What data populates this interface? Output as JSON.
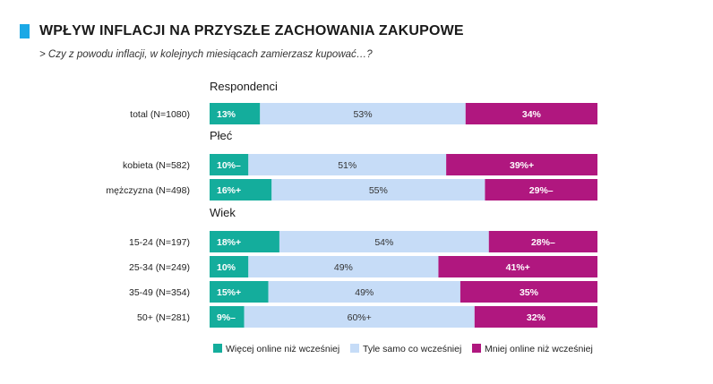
{
  "header": {
    "title": "WPŁYW INFLACJI NA PRZYSZŁE ZACHOWANIA ZAKUPOWE",
    "subtitle": "> Czy z powodu inflacji, w kolejnych miesiącach zamierzasz kupować…?"
  },
  "chart_data": {
    "type": "bar",
    "orientation": "horizontal",
    "stacked": true,
    "normalized": true,
    "colors": {
      "more_online": "#14ad9c",
      "same": "#c6dcf7",
      "less_online": "#b0177f"
    },
    "groups": [
      {
        "label": "Respondenci",
        "rows": [
          {
            "label": "total (N=1080)",
            "values": [
              13,
              53,
              34
            ],
            "labels": [
              "13%",
              "53%",
              "34%"
            ]
          }
        ]
      },
      {
        "label": "Płeć",
        "rows": [
          {
            "label": "kobieta (N=582)",
            "values": [
              10,
              51,
              39
            ],
            "labels": [
              "10%–",
              "51%",
              "39%+"
            ]
          },
          {
            "label": "mężczyzna (N=498)",
            "values": [
              16,
              55,
              29
            ],
            "labels": [
              "16%+",
              "55%",
              "29%–"
            ]
          }
        ]
      },
      {
        "label": "Wiek",
        "rows": [
          {
            "label": "15-24 (N=197)",
            "values": [
              18,
              54,
              28
            ],
            "labels": [
              "18%+",
              "54%",
              "28%–"
            ]
          },
          {
            "label": "25-34 (N=249)",
            "values": [
              10,
              49,
              41
            ],
            "labels": [
              "10%",
              "49%",
              "41%+"
            ]
          },
          {
            "label": "35-49 (N=354)",
            "values": [
              15,
              49,
              35
            ],
            "labels": [
              "15%+",
              "49%",
              "35%"
            ]
          },
          {
            "label": "50+ (N=281)",
            "values": [
              9,
              60,
              32
            ],
            "labels": [
              "9%–",
              "60%+",
              "32%"
            ]
          }
        ]
      }
    ],
    "legend": {
      "placement": "bottom",
      "entries": [
        {
          "name": "Więcej online niż wcześniej",
          "color": "#14ad9c"
        },
        {
          "name": "Tyle samo co wcześniej",
          "color": "#c6dcf7"
        },
        {
          "name": "Mniej online niż wcześniej",
          "color": "#b0177f"
        }
      ]
    }
  }
}
